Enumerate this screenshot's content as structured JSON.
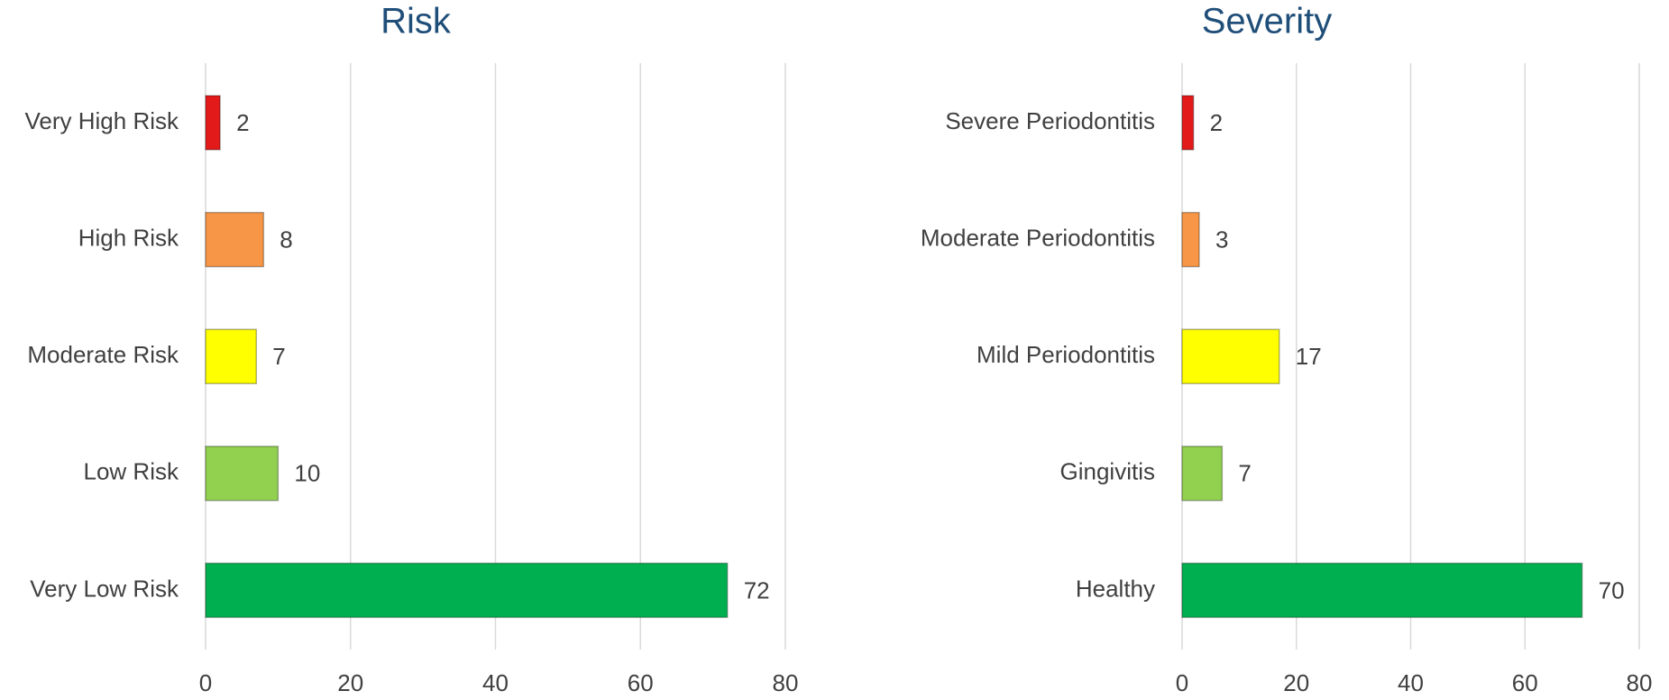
{
  "chart_data": [
    {
      "type": "bar",
      "orientation": "horizontal",
      "title": "Risk",
      "categories": [
        "Very High Risk",
        "High Risk",
        "Moderate Risk",
        "Low Risk",
        "Very Low Risk"
      ],
      "values": [
        2,
        8,
        7,
        10,
        72
      ],
      "colors": [
        "#e31a1a",
        "#f79646",
        "#ffff00",
        "#92d050",
        "#00b050"
      ],
      "xlim": [
        0,
        80
      ],
      "xticks": [
        0,
        20,
        40,
        60,
        80
      ],
      "grid": true
    },
    {
      "type": "bar",
      "orientation": "horizontal",
      "title": "Severity",
      "categories": [
        "Severe Periodontitis",
        "Moderate Periodontitis",
        "Mild Periodontitis",
        "Gingivitis",
        "Healthy"
      ],
      "values": [
        2,
        3,
        17,
        7,
        70
      ],
      "colors": [
        "#e31a1a",
        "#f79646",
        "#ffff00",
        "#92d050",
        "#00b050"
      ],
      "xlim": [
        0,
        80
      ],
      "xticks": [
        0,
        20,
        40,
        60,
        80
      ],
      "grid": true
    }
  ]
}
